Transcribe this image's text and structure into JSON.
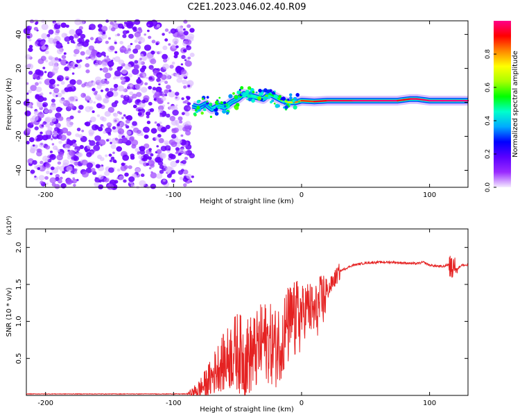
{
  "title": "C2E1.2023.046.02.40.R09",
  "colors": {
    "background": "#ffffff",
    "axis": "#000000",
    "snr_line": "#e52222",
    "spectrogram_noise": "#7a00ff",
    "spectrogram_core": "#ff2a2a"
  },
  "chart_data": [
    {
      "type": "heatmap",
      "name": "spectrogram",
      "xlabel": "Height of straight line (km)",
      "ylabel": "Frequency (Hz)",
      "xlim": [
        -215,
        130
      ],
      "ylim": [
        -50,
        48
      ],
      "x_ticks": [
        -200,
        -100,
        0,
        100
      ],
      "x_tick_labels": [
        "-200",
        "-100",
        "0",
        "100"
      ],
      "y_ticks": [
        -40,
        -20,
        0,
        20,
        40
      ],
      "y_tick_labels": [
        "-40",
        "-20",
        "0",
        "20",
        "40"
      ],
      "colorbar": {
        "label": "Normalized spectral amplitude",
        "range": [
          0,
          1
        ],
        "ticks": [
          0,
          0.2,
          0.4,
          0.6,
          0.8
        ],
        "tick_labels": [
          "0.0",
          "0.2",
          "0.4",
          "0.6",
          "0.8"
        ],
        "colormap": [
          "#f5ecff",
          "#9a2aff",
          "#5a00ff",
          "#0000ff",
          "#00aaff",
          "#00ffcc",
          "#00ff00",
          "#aaff00",
          "#ffff00",
          "#ff8800",
          "#ff0000",
          "#ff0088"
        ]
      },
      "noise_region_x": [
        -215,
        -85
      ],
      "noise_amplitude": 0.15,
      "signal_track": {
        "x": [
          -85,
          -80,
          -75,
          -70,
          -65,
          -60,
          -55,
          -50,
          -45,
          -40,
          -35,
          -30,
          -25,
          -20,
          -15,
          -10,
          -5,
          0,
          10,
          20,
          40,
          60,
          75,
          80,
          85,
          90,
          95,
          100,
          110,
          120,
          130
        ],
        "frequency": [
          -2,
          -3,
          -1,
          -4,
          -2,
          -3,
          0,
          2,
          5,
          4,
          3,
          2,
          5,
          3,
          1,
          0,
          0,
          1,
          0.5,
          1,
          1,
          1,
          1,
          1.5,
          2,
          2,
          1.5,
          1,
          1,
          1,
          1
        ],
        "amplitude": [
          0.3,
          0.35,
          0.3,
          0.4,
          0.35,
          0.4,
          0.35,
          0.35,
          0.4,
          0.45,
          0.45,
          0.5,
          0.5,
          0.55,
          0.6,
          0.7,
          0.8,
          0.85,
          0.9,
          0.95,
          0.98,
          1.0,
          0.98,
          0.9,
          0.95,
          0.98,
          0.95,
          1.0,
          1.0,
          1.0,
          1.0
        ]
      }
    },
    {
      "type": "line",
      "name": "snr",
      "xlabel": "Height of straight line (km)",
      "ylabel": "SNR (10 * v/v)",
      "y_multiplier": "(x10⁴)",
      "xlim": [
        -215,
        130
      ],
      "ylim": [
        0,
        2.25
      ],
      "x_ticks": [
        -200,
        -100,
        0,
        100
      ],
      "x_tick_labels": [
        "-200",
        "-100",
        "0",
        "100"
      ],
      "y_ticks": [
        0.5,
        1.0,
        1.5,
        2.0
      ],
      "y_tick_labels": [
        "0.5",
        "1.0",
        "1.5",
        "2.0"
      ],
      "series": [
        {
          "x": [
            -215,
            -200,
            -180,
            -160,
            -140,
            -120,
            -100,
            -95,
            -90,
            -85,
            -80,
            -75,
            -70,
            -65,
            -60,
            -55,
            -50,
            -45,
            -40,
            -35,
            -30,
            -25,
            -20,
            -15,
            -10,
            -5,
            0,
            5,
            10,
            15,
            20,
            25,
            30,
            40,
            50,
            60,
            70,
            80,
            90,
            95,
            100,
            110,
            115,
            118,
            120,
            122,
            125,
            130
          ],
          "y": [
            0.02,
            0.02,
            0.02,
            0.02,
            0.02,
            0.02,
            0.02,
            0.02,
            0.02,
            0.04,
            0.08,
            0.15,
            0.25,
            0.4,
            0.45,
            0.55,
            0.6,
            0.5,
            0.55,
            0.6,
            0.75,
            0.7,
            0.65,
            0.8,
            0.95,
            1.0,
            1.1,
            1.2,
            1.1,
            1.25,
            1.4,
            1.55,
            1.68,
            1.76,
            1.79,
            1.8,
            1.8,
            1.79,
            1.78,
            1.8,
            1.76,
            1.74,
            1.77,
            1.7,
            1.82,
            1.72,
            1.76,
            1.76
          ]
        }
      ]
    }
  ]
}
